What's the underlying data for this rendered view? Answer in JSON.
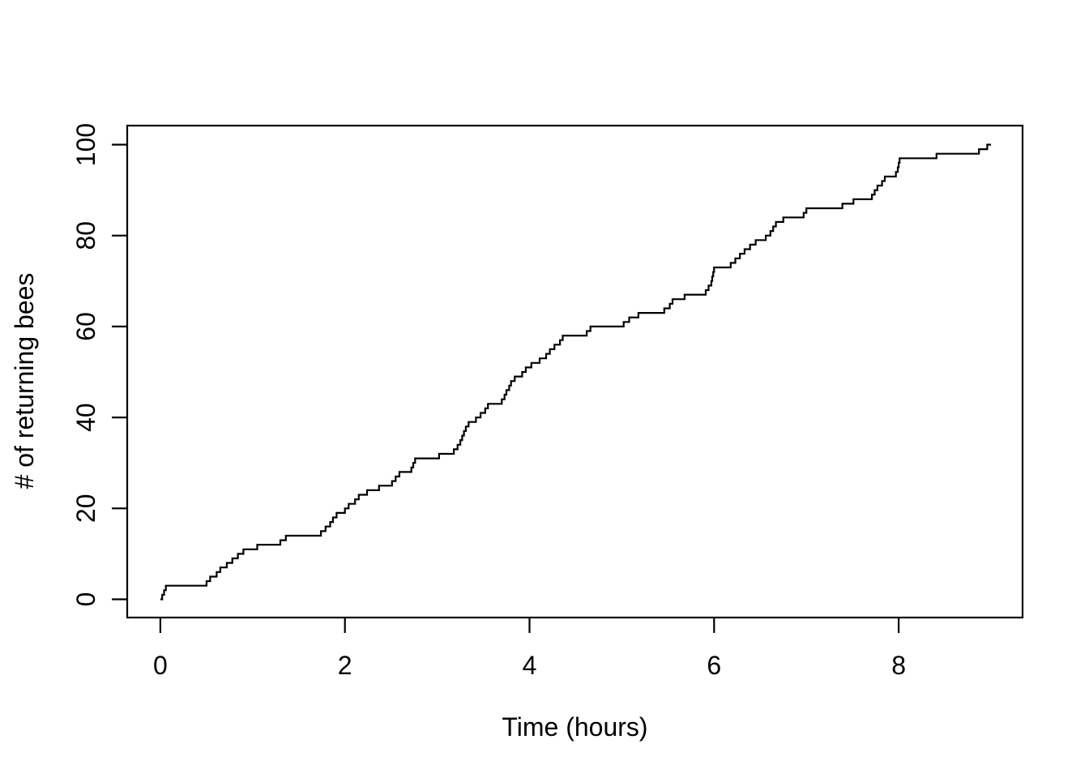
{
  "chart_data": {
    "type": "line",
    "subtype": "step-post",
    "title": "",
    "xlabel": "Time (hours)",
    "ylabel": "# of returning bees",
    "x_ticks": [
      0,
      2,
      4,
      6,
      8
    ],
    "y_ticks": [
      0,
      20,
      40,
      60,
      80,
      100
    ],
    "xlim": [
      -0.36,
      9.36
    ],
    "ylim": [
      -4,
      104
    ],
    "grid": false,
    "legend_position": null,
    "line_color": "#000000",
    "background_color": "#ffffff",
    "start_point": {
      "x": 0,
      "y": 0
    },
    "end_x": 9.0,
    "final_count": 100,
    "event_times_hours": [
      0.02,
      0.04,
      0.06,
      0.5,
      0.54,
      0.61,
      0.65,
      0.72,
      0.78,
      0.84,
      0.9,
      1.05,
      1.3,
      1.36,
      1.74,
      1.79,
      1.84,
      1.87,
      1.91,
      2.0,
      2.04,
      2.11,
      2.15,
      2.24,
      2.37,
      2.51,
      2.55,
      2.59,
      2.72,
      2.74,
      2.76,
      3.02,
      3.18,
      3.22,
      3.25,
      3.27,
      3.29,
      3.31,
      3.34,
      3.42,
      3.47,
      3.52,
      3.55,
      3.7,
      3.73,
      3.75,
      3.78,
      3.8,
      3.84,
      3.92,
      3.96,
      4.02,
      4.11,
      4.18,
      4.22,
      4.27,
      4.33,
      4.36,
      4.62,
      4.66,
      5.02,
      5.08,
      5.18,
      5.46,
      5.52,
      5.55,
      5.68,
      5.91,
      5.94,
      5.97,
      5.98,
      5.99,
      6.0,
      6.18,
      6.23,
      6.28,
      6.33,
      6.39,
      6.45,
      6.56,
      6.61,
      6.64,
      6.67,
      6.75,
      6.97,
      7.0,
      7.39,
      7.51,
      7.71,
      7.74,
      7.77,
      7.82,
      7.85,
      7.97,
      7.99,
      8.0,
      8.01,
      8.41,
      8.87,
      8.96
    ]
  }
}
